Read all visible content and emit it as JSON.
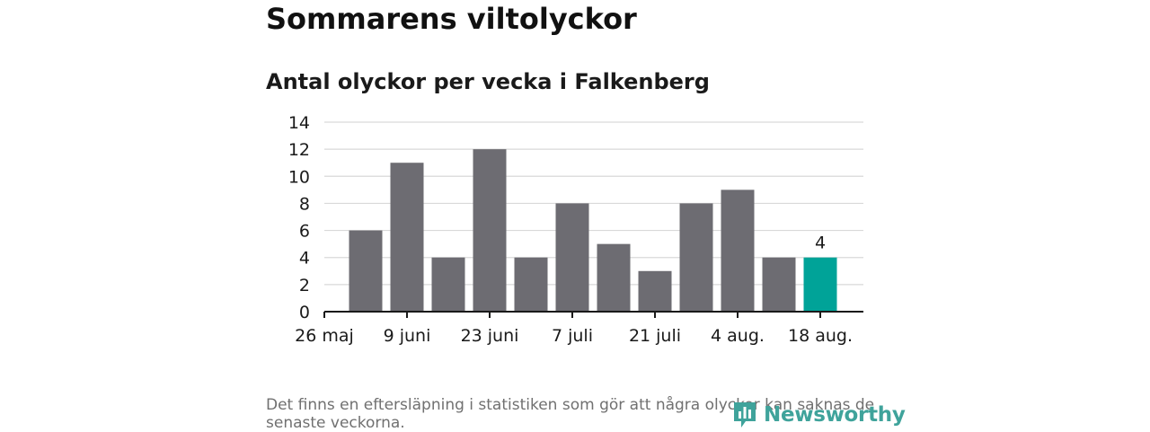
{
  "header": {
    "title": "Sommarens viltolyckor",
    "subtitle": "Antal olyckor per vecka i Falkenberg"
  },
  "footer": {
    "note": "Det finns en eftersläpning i statistiken som gör att några olyckor kan saknas de senaste veckorna.",
    "brand": "Newsworthy"
  },
  "colors": {
    "bar": "#6d6c72",
    "highlight": "#00a398",
    "grid": "#d9d9d9",
    "axis": "#1a1a1a",
    "brand": "#3fa39b"
  },
  "chart_data": {
    "type": "bar",
    "title": "Antal olyckor per vecka i Falkenberg",
    "values": [
      6,
      11,
      4,
      12,
      4,
      8,
      5,
      3,
      8,
      9,
      4,
      4
    ],
    "highlight_index": 11,
    "highlight_label": "4",
    "x_tick_labels": [
      "26 maj",
      "9 juni",
      "23 juni",
      "7 juli",
      "21 juli",
      "4 aug.",
      "18 aug."
    ],
    "y_ticks": [
      0,
      2,
      4,
      6,
      8,
      10,
      12,
      14
    ],
    "ylim": [
      0,
      14
    ],
    "grid": true,
    "legend": "none"
  }
}
